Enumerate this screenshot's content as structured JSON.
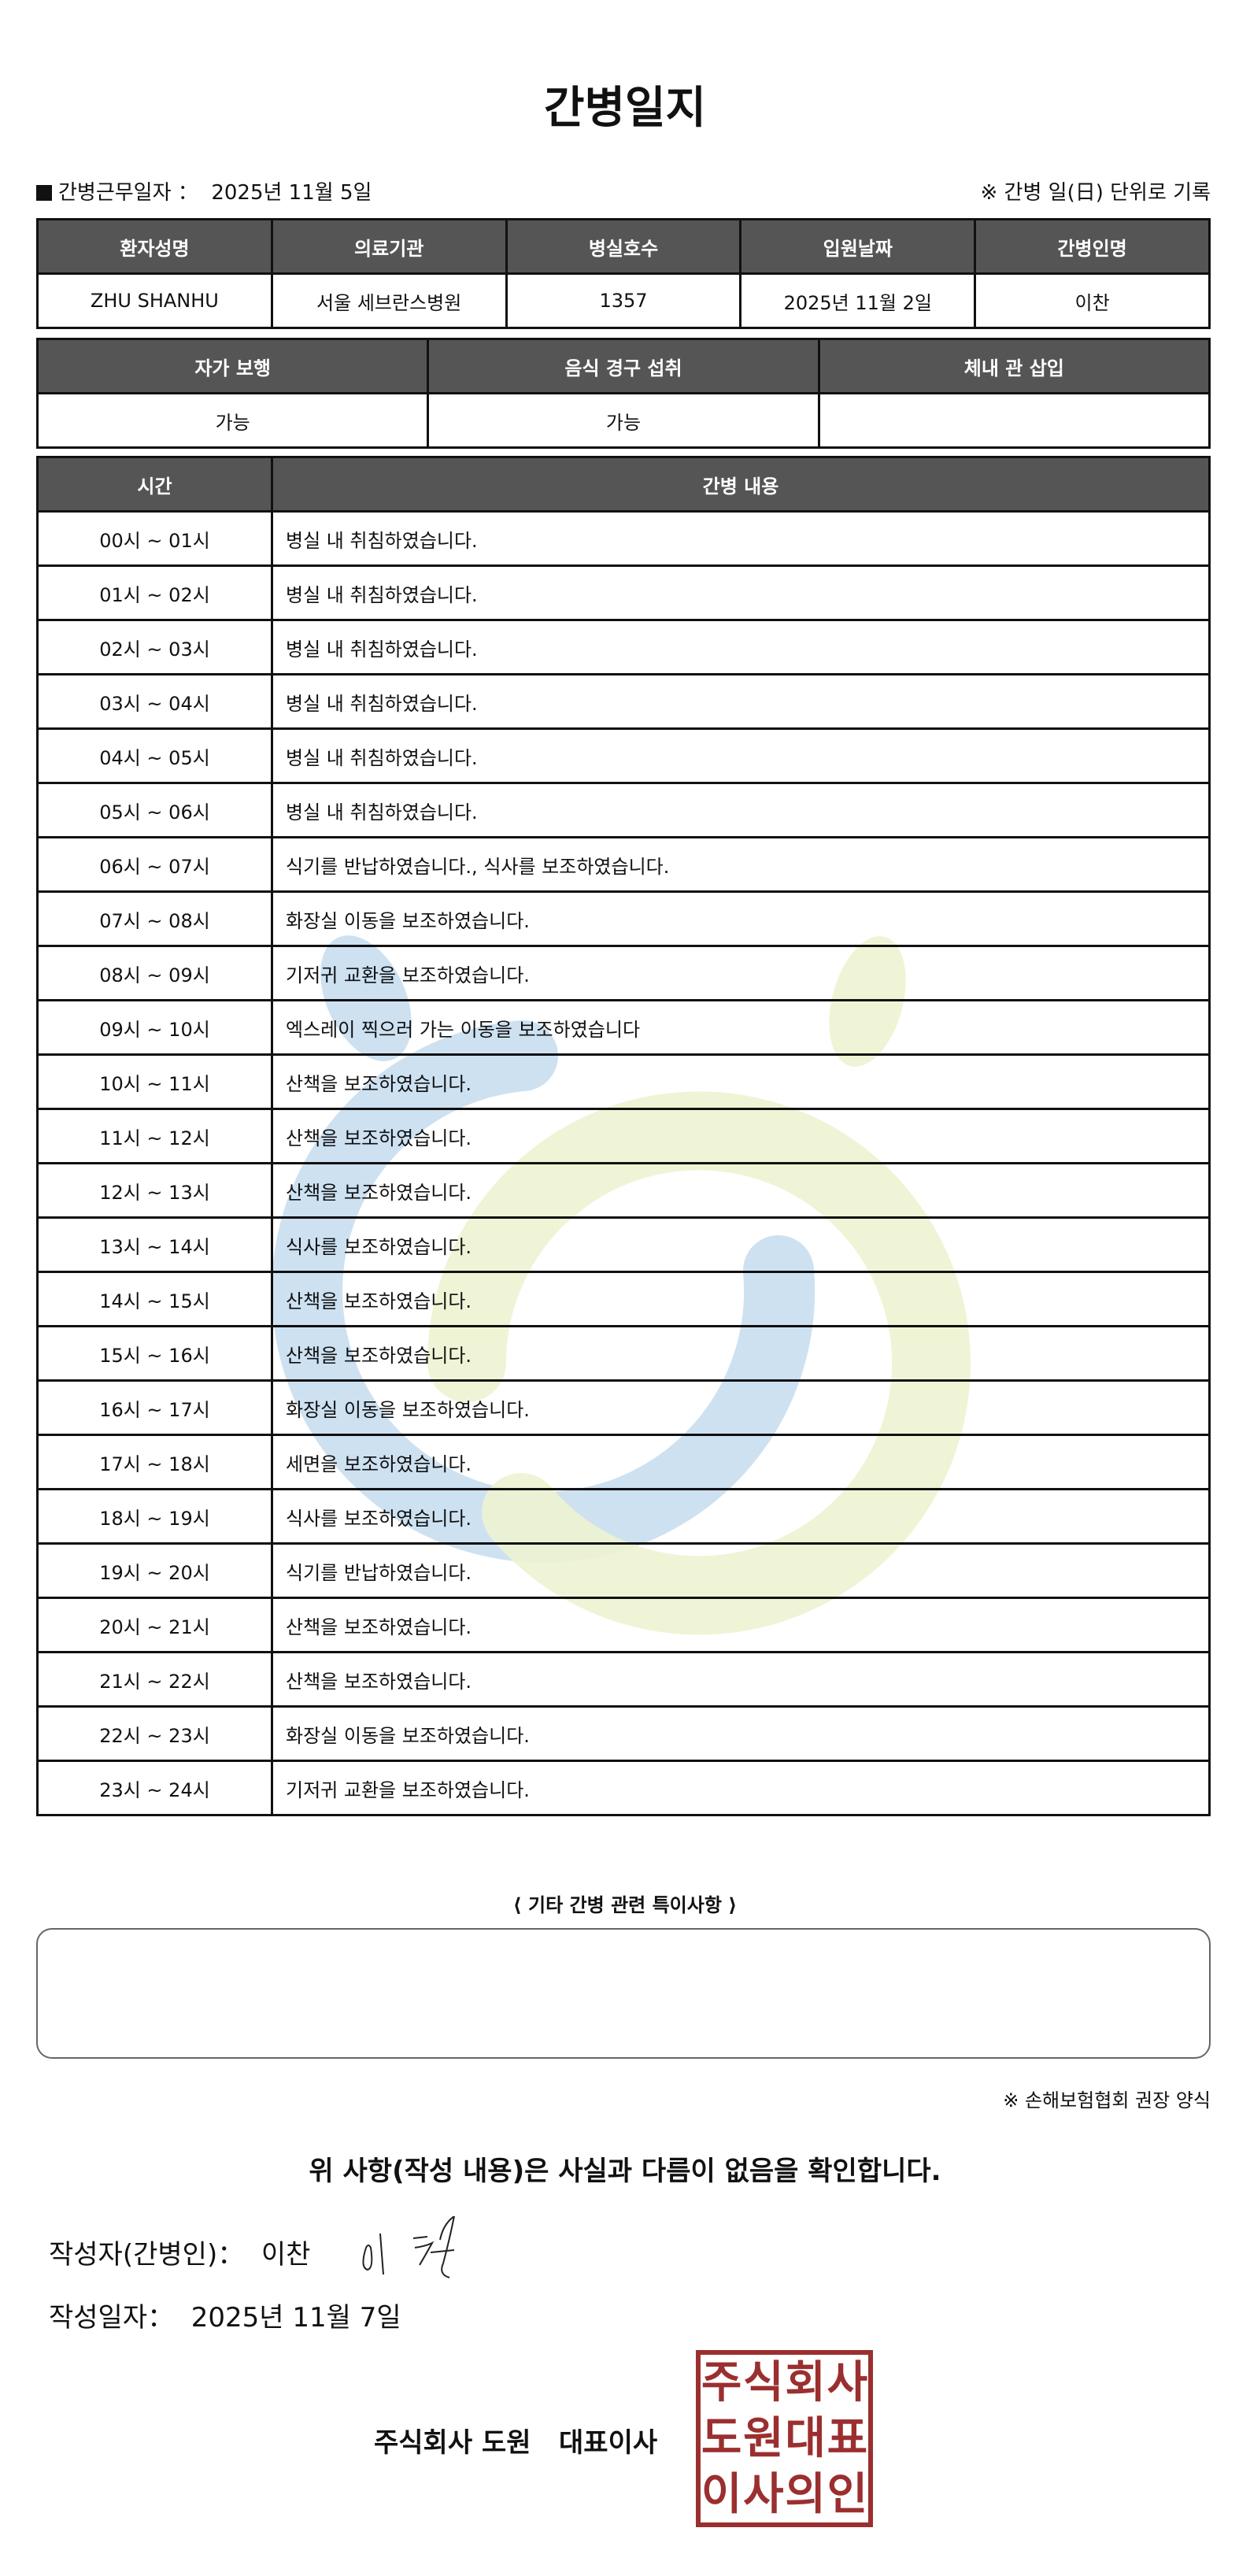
{
  "title": "간병일지",
  "work_date_label": "간병근무일자 ：",
  "work_date": "2025년 11월 5일",
  "record_note": "※ 간병 일(日) 단위로 기록",
  "patient_table": {
    "headers": [
      "환자성명",
      "의료기관",
      "병실호수",
      "입원날짜",
      "간병인명"
    ],
    "values": [
      "ZHU SHANHU",
      "서울 세브란스병원",
      "1357",
      "2025년 11월 2일",
      "이찬"
    ]
  },
  "status_table": {
    "headers": [
      "자가 보행",
      "음식 경구 섭취",
      "체내 관 삽입"
    ],
    "values": [
      "가능",
      "가능",
      ""
    ]
  },
  "log_table": {
    "headers": [
      "시간",
      "간병 내용"
    ],
    "rows": [
      {
        "time": "00시 ~ 01시",
        "content": "병실 내 취침하였습니다."
      },
      {
        "time": "01시 ~ 02시",
        "content": "병실 내 취침하였습니다."
      },
      {
        "time": "02시 ~ 03시",
        "content": "병실 내 취침하였습니다."
      },
      {
        "time": "03시 ~ 04시",
        "content": "병실 내 취침하였습니다."
      },
      {
        "time": "04시 ~ 05시",
        "content": "병실 내 취침하였습니다."
      },
      {
        "time": "05시 ~ 06시",
        "content": "병실 내 취침하였습니다."
      },
      {
        "time": "06시 ~ 07시",
        "content": "식기를 반납하였습니다., 식사를 보조하였습니다."
      },
      {
        "time": "07시 ~ 08시",
        "content": "화장실 이동을 보조하였습니다."
      },
      {
        "time": "08시 ~ 09시",
        "content": "기저귀 교환을 보조하였습니다."
      },
      {
        "time": "09시 ~ 10시",
        "content": "엑스레이 찍으러 가는 이동을 보조하였습니다"
      },
      {
        "time": "10시 ~ 11시",
        "content": "산책을 보조하였습니다."
      },
      {
        "time": "11시 ~ 12시",
        "content": "산책을 보조하였습니다."
      },
      {
        "time": "12시 ~ 13시",
        "content": "산책을 보조하였습니다."
      },
      {
        "time": "13시 ~ 14시",
        "content": "식사를 보조하였습니다."
      },
      {
        "time": "14시 ~ 15시",
        "content": "산책을 보조하였습니다."
      },
      {
        "time": "15시 ~ 16시",
        "content": "산책을 보조하였습니다."
      },
      {
        "time": "16시 ~ 17시",
        "content": "화장실 이동을 보조하였습니다."
      },
      {
        "time": "17시 ~ 18시",
        "content": "세면을 보조하였습니다."
      },
      {
        "time": "18시 ~ 19시",
        "content": "식사를 보조하였습니다."
      },
      {
        "time": "19시 ~ 20시",
        "content": "식기를 반납하였습니다."
      },
      {
        "time": "20시 ~ 21시",
        "content": "산책을 보조하였습니다."
      },
      {
        "time": "21시 ~ 22시",
        "content": "산책을 보조하였습니다."
      },
      {
        "time": "22시 ~ 23시",
        "content": "화장실 이동을 보조하였습니다."
      },
      {
        "time": "23시 ~ 24시",
        "content": "기저귀 교환을 보조하였습니다."
      }
    ]
  },
  "notes_title": "⟨ 기타 간병 관련 특이사항 ⟩",
  "notes_value": "",
  "form_note": "※ 손해보험협회 권장 양식",
  "confirm_text": "위 사항(작성 내용)은 사실과 다름이 없음을 확인합니다.",
  "writer_label": "작성자(간병인)：",
  "writer_name": "이찬",
  "write_date_label": "작성일자：",
  "write_date": "2025년 11월 7일",
  "company_line": "주식회사 도원   대표이사",
  "stamp_text": [
    "주",
    "식",
    "회",
    "사",
    "도",
    "원",
    "대",
    "표",
    "이",
    "사",
    "의",
    "인"
  ],
  "colors": {
    "header_bg": "#555555",
    "stamp": "#9b2f2f",
    "watermark_blue": "#c8def0",
    "watermark_yellow": "#eef3d2"
  }
}
